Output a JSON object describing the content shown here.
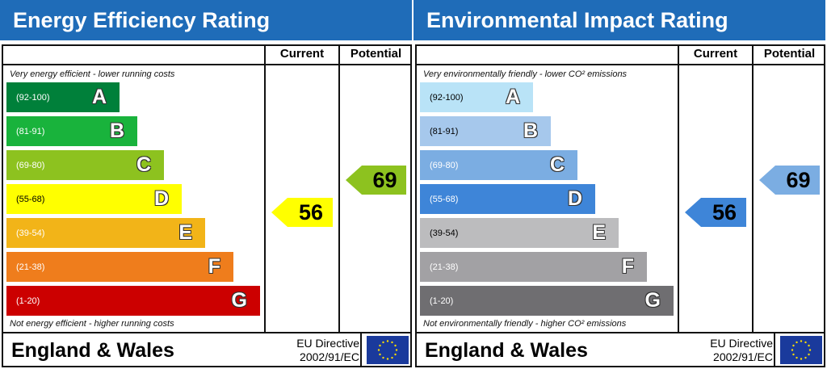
{
  "chart_data": [
    {
      "type": "bar",
      "title": "Energy Efficiency Rating",
      "columns": [
        "Current",
        "Potential"
      ],
      "top_note": "Very energy efficient - lower running costs",
      "bottom_note": "Not energy efficient - higher running costs",
      "bands": [
        {
          "letter": "A",
          "range": "(92-100)",
          "color": "#00803a",
          "text": "#fff"
        },
        {
          "letter": "B",
          "range": "(81-91)",
          "color": "#19b33c",
          "text": "#fff"
        },
        {
          "letter": "C",
          "range": "(69-80)",
          "color": "#8dc21f",
          "text": "#fff"
        },
        {
          "letter": "D",
          "range": "(55-68)",
          "color": "#ffff00",
          "text": "#000"
        },
        {
          "letter": "E",
          "range": "(39-54)",
          "color": "#f2b418",
          "text": "#fff"
        },
        {
          "letter": "F",
          "range": "(21-38)",
          "color": "#ef7d1c",
          "text": "#fff"
        },
        {
          "letter": "G",
          "range": "(1-20)",
          "color": "#cc0000",
          "text": "#fff"
        }
      ],
      "current": {
        "value": 56,
        "band": "D",
        "color": "#ffff00"
      },
      "potential": {
        "value": 69,
        "band": "C",
        "color": "#8dc21f"
      },
      "footer": {
        "country": "England & Wales",
        "directive_line1": "EU Directive",
        "directive_line2": "2002/91/EC"
      }
    },
    {
      "type": "bar",
      "title": "Environmental Impact Rating",
      "columns": [
        "Current",
        "Potential"
      ],
      "top_note": "Very environmentally friendly - lower CO² emissions",
      "bottom_note": "Not environmentally friendly - higher CO² emissions",
      "bands": [
        {
          "letter": "A",
          "range": "(92-100)",
          "color": "#b9e3f7",
          "text": "#000"
        },
        {
          "letter": "B",
          "range": "(81-91)",
          "color": "#a6c8ec",
          "text": "#000"
        },
        {
          "letter": "C",
          "range": "(69-80)",
          "color": "#7badE2",
          "text": "#fff"
        },
        {
          "letter": "D",
          "range": "(55-68)",
          "color": "#3e85d8",
          "text": "#fff"
        },
        {
          "letter": "E",
          "range": "(39-54)",
          "color": "#bcbcbe",
          "text": "#000"
        },
        {
          "letter": "F",
          "range": "(21-38)",
          "color": "#a2a1a4",
          "text": "#fff"
        },
        {
          "letter": "G",
          "range": "(1-20)",
          "color": "#6f6e71",
          "text": "#fff"
        }
      ],
      "current": {
        "value": 56,
        "band": "D",
        "color": "#3e85d8"
      },
      "potential": {
        "value": 69,
        "band": "C",
        "color": "#7badE2"
      },
      "footer": {
        "country": "England & Wales",
        "directive_line1": "EU Directive",
        "directive_line2": "2002/91/EC"
      }
    }
  ]
}
